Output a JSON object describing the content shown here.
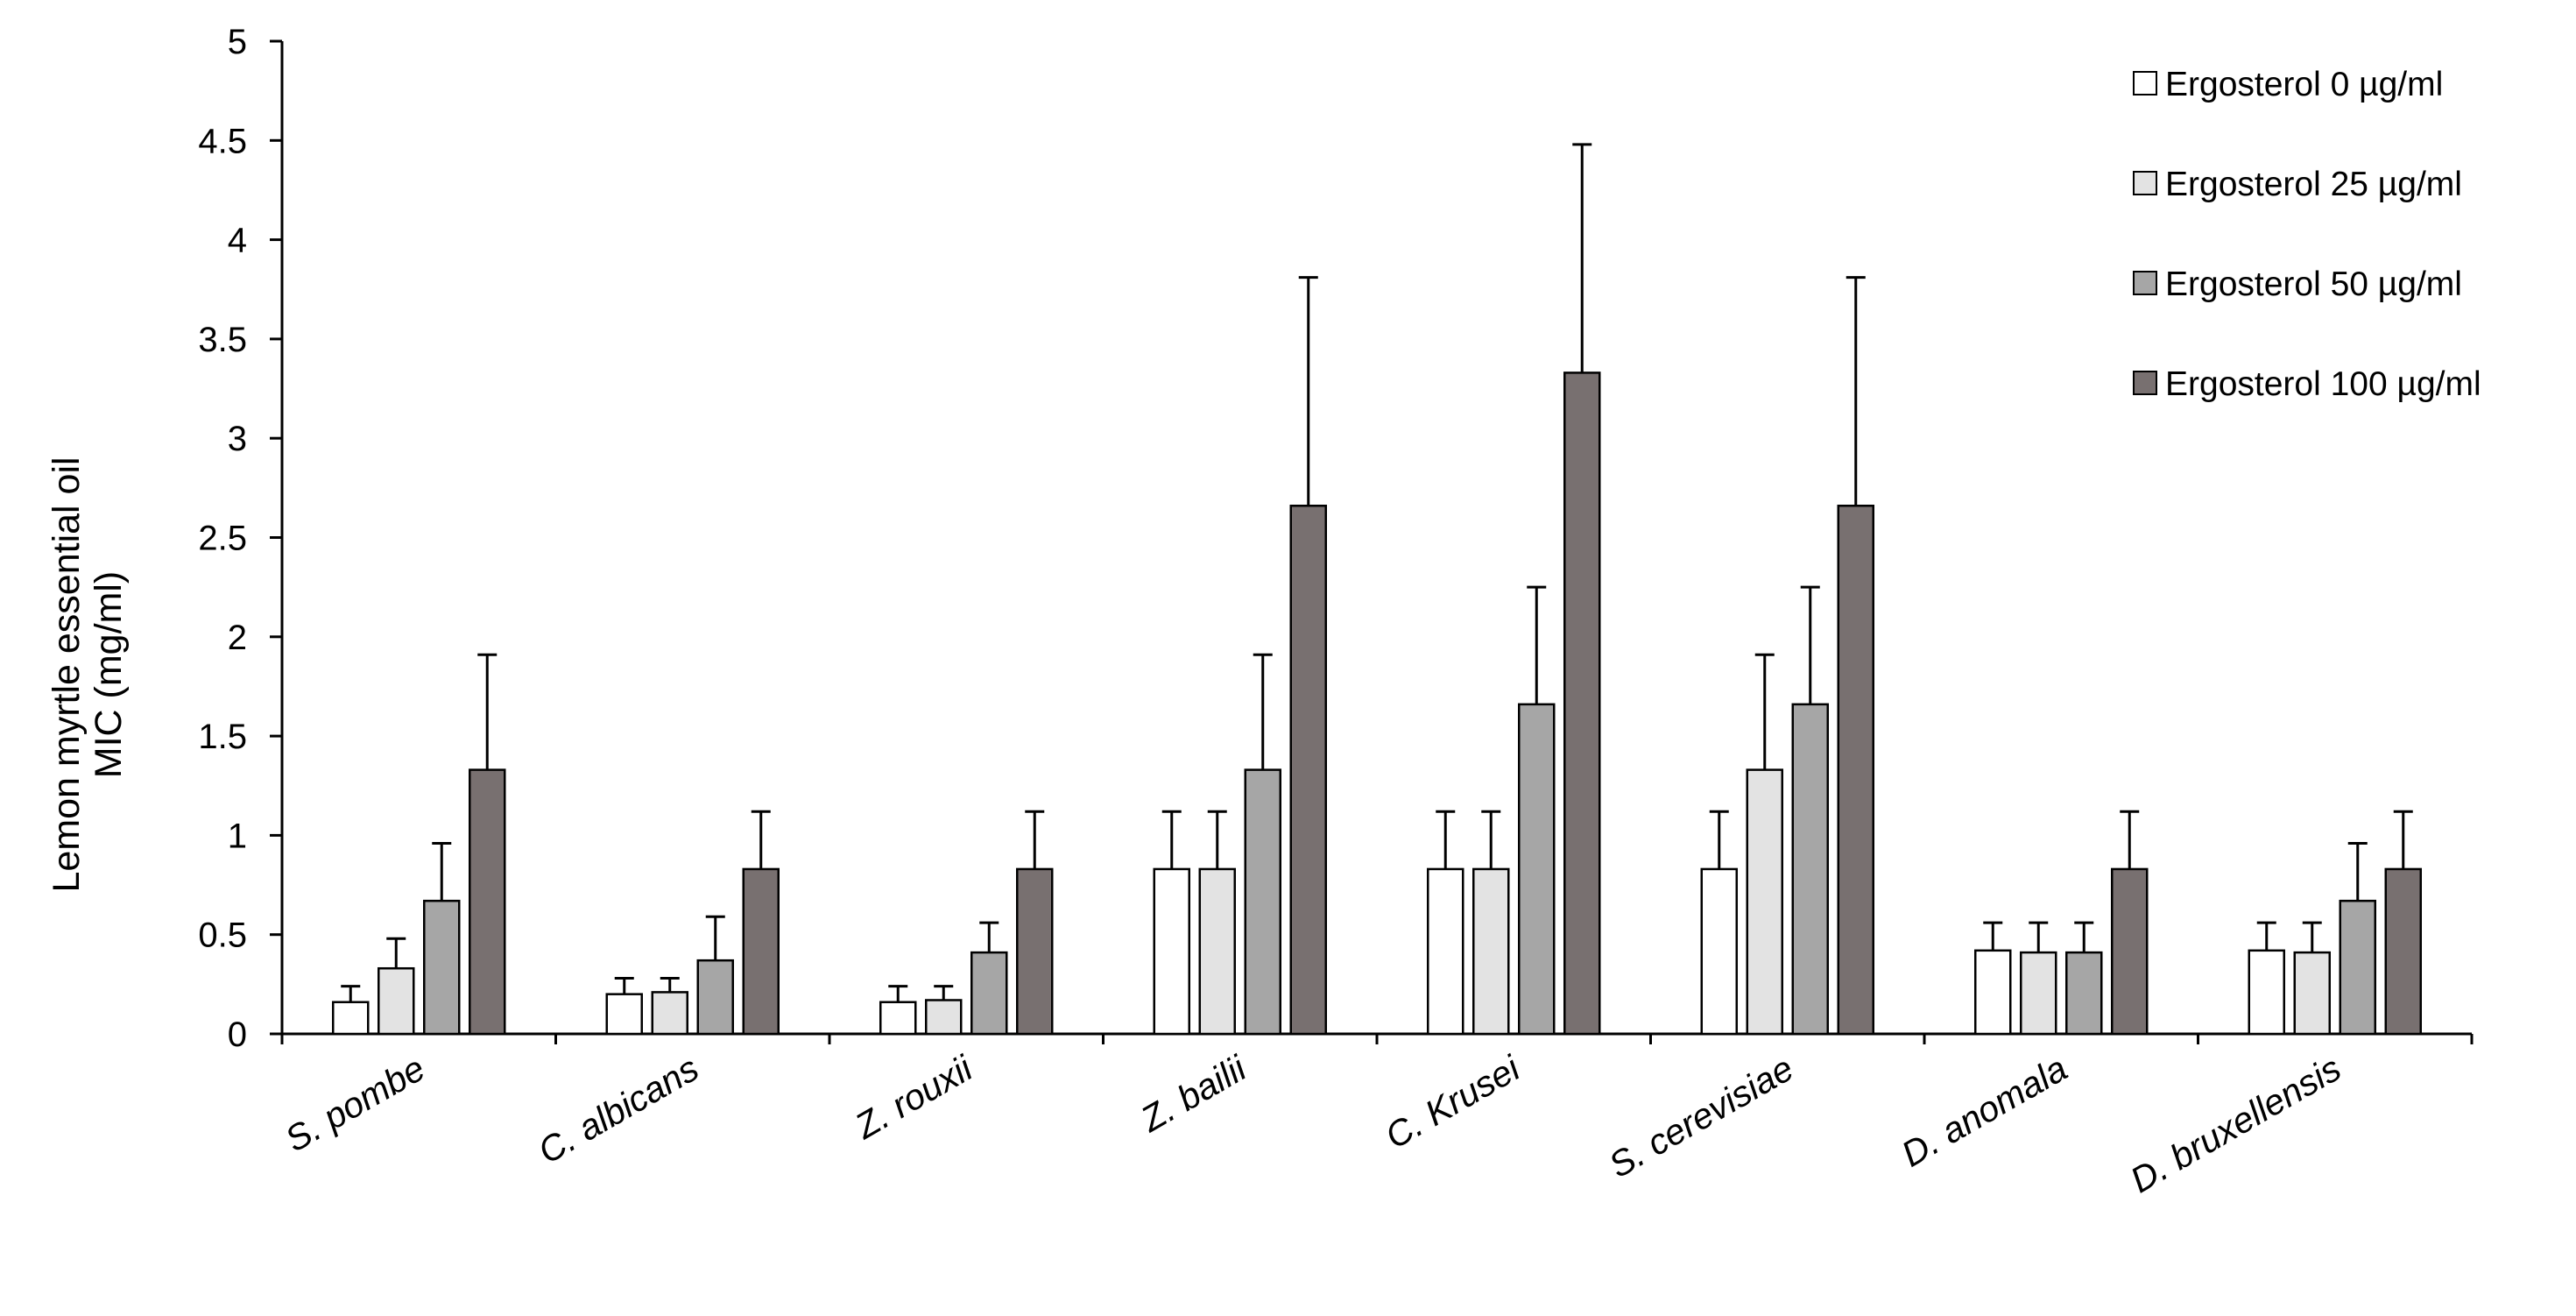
{
  "chart_data": {
    "type": "bar",
    "ylabel_lines": [
      "Lemon myrtle essential oil",
      "MIC (mg/ml)"
    ],
    "xlabel": "",
    "ylim": [
      0,
      5
    ],
    "yticks": [
      "0",
      "0.5",
      "1",
      "1.5",
      "2",
      "2.5",
      "3",
      "3.5",
      "4",
      "4.5",
      "5"
    ],
    "grid": false,
    "legend_position": "top-right",
    "categories": [
      "S. pombe",
      "C. albicans",
      "Z. rouxii",
      "Z. bailii",
      "C. Krusei",
      "S. cerevisiae",
      "D. anomala",
      "D. bruxellensis"
    ],
    "series": [
      {
        "name": "Ergosterol 0 µg/ml",
        "color": "#ffffff",
        "values": [
          0.16,
          0.2,
          0.16,
          0.83,
          0.83,
          0.83,
          0.42,
          0.42
        ],
        "errors": [
          0.08,
          0.08,
          0.08,
          0.29,
          0.29,
          0.29,
          0.14,
          0.14
        ]
      },
      {
        "name": "Ergosterol 25 µg/ml",
        "color": "#e3e3e3",
        "values": [
          0.33,
          0.21,
          0.17,
          0.83,
          0.83,
          1.33,
          0.41,
          0.41
        ],
        "errors": [
          0.15,
          0.07,
          0.07,
          0.29,
          0.29,
          0.58,
          0.15,
          0.15
        ]
      },
      {
        "name": "Ergosterol 50 µg/ml",
        "color": "#a6a6a6",
        "values": [
          0.67,
          0.37,
          0.41,
          1.33,
          1.66,
          1.66,
          0.41,
          0.67
        ],
        "errors": [
          0.29,
          0.22,
          0.15,
          0.58,
          0.59,
          0.59,
          0.15,
          0.29
        ]
      },
      {
        "name": "Ergosterol 100 µg/ml",
        "color": "#787070",
        "values": [
          1.33,
          0.83,
          0.83,
          2.66,
          3.33,
          2.66,
          0.83,
          0.83
        ],
        "errors": [
          0.58,
          0.29,
          0.29,
          1.15,
          1.15,
          1.15,
          0.29,
          0.29
        ]
      }
    ]
  }
}
